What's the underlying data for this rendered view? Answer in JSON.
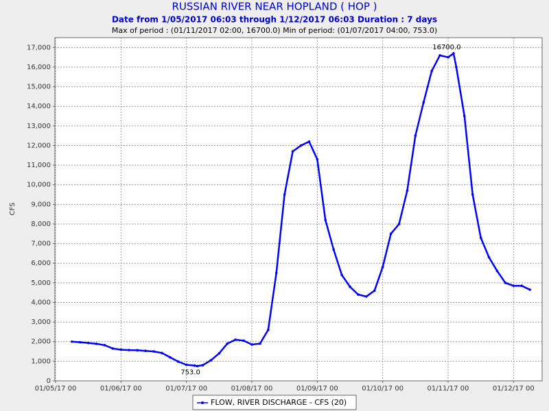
{
  "chart_data": {
    "type": "line",
    "title": "RUSSIAN RIVER NEAR HOPLAND ( HOP )",
    "subtitle": "Date from 1/05/2017 06:03 through 1/12/2017 06:03 Duration : 7 days",
    "summary": "Max of period : (01/11/2017 02:00, 16700.0)  Min of period: (01/07/2017 04:00,  753.0)",
    "y_label": "CFS",
    "grid": true,
    "xlim": [
      "2017-01-04T23:45",
      "2017-01-12T10:30"
    ],
    "ylim": [
      0,
      17500
    ],
    "xticks": [
      {
        "value": "2017-01-05T00:00",
        "label": "01/05/17 00"
      },
      {
        "value": "2017-01-06T00:00",
        "label": "01/06/17 00"
      },
      {
        "value": "2017-01-07T00:00",
        "label": "01/07/17 00"
      },
      {
        "value": "2017-01-08T00:00",
        "label": "01/08/17 00"
      },
      {
        "value": "2017-01-09T00:00",
        "label": "01/09/17 00"
      },
      {
        "value": "2017-01-10T00:00",
        "label": "01/10/17 00"
      },
      {
        "value": "2017-01-11T00:00",
        "label": "01/11/17 00"
      },
      {
        "value": "2017-01-12T00:00",
        "label": "01/12/17 00"
      }
    ],
    "yticks": [
      0,
      {
        "value": 1000,
        "label": "1,000"
      },
      {
        "value": 2000,
        "label": "2,000"
      },
      {
        "value": 3000,
        "label": "3,000"
      },
      {
        "value": 4000,
        "label": "4,000"
      },
      {
        "value": 5000,
        "label": "5,000"
      },
      {
        "value": 6000,
        "label": "6,000"
      },
      {
        "value": 7000,
        "label": "7,000"
      },
      {
        "value": 8000,
        "label": "8,000"
      },
      {
        "value": 9000,
        "label": "9,000"
      },
      {
        "value": 10000,
        "label": "10,000"
      },
      {
        "value": 11000,
        "label": "11,000"
      },
      {
        "value": 12000,
        "label": "12,000"
      },
      {
        "value": 13000,
        "label": "13,000"
      },
      {
        "value": 14000,
        "label": "14,000"
      },
      {
        "value": 15000,
        "label": "15,000"
      },
      {
        "value": 16000,
        "label": "16,000"
      },
      {
        "value": 17000,
        "label": "17,000"
      }
    ],
    "x": [
      "2017-01-05T06:00",
      "2017-01-05T09:00",
      "2017-01-05T12:00",
      "2017-01-05T15:00",
      "2017-01-05T18:00",
      "2017-01-05T21:00",
      "2017-01-06T00:00",
      "2017-01-06T03:00",
      "2017-01-06T06:00",
      "2017-01-06T09:00",
      "2017-01-06T12:00",
      "2017-01-06T15:00",
      "2017-01-06T18:00",
      "2017-01-06T21:00",
      "2017-01-07T00:00",
      "2017-01-07T03:00",
      "2017-01-07T04:00",
      "2017-01-07T06:00",
      "2017-01-07T09:00",
      "2017-01-07T12:00",
      "2017-01-07T15:00",
      "2017-01-07T18:00",
      "2017-01-07T21:00",
      "2017-01-08T00:00",
      "2017-01-08T03:00",
      "2017-01-08T06:00",
      "2017-01-08T09:00",
      "2017-01-08T12:00",
      "2017-01-08T15:00",
      "2017-01-08T18:00",
      "2017-01-08T21:00",
      "2017-01-09T00:00",
      "2017-01-09T03:00",
      "2017-01-09T06:00",
      "2017-01-09T09:00",
      "2017-01-09T12:00",
      "2017-01-09T15:00",
      "2017-01-09T18:00",
      "2017-01-09T21:00",
      "2017-01-10T00:00",
      "2017-01-10T03:00",
      "2017-01-10T06:00",
      "2017-01-10T09:00",
      "2017-01-10T12:00",
      "2017-01-10T15:00",
      "2017-01-10T18:00",
      "2017-01-10T21:00",
      "2017-01-11T00:00",
      "2017-01-11T02:00",
      "2017-01-11T03:00",
      "2017-01-11T06:00",
      "2017-01-11T09:00",
      "2017-01-11T12:00",
      "2017-01-11T15:00",
      "2017-01-11T18:00",
      "2017-01-11T21:00",
      "2017-01-12T00:00",
      "2017-01-12T03:00",
      "2017-01-12T06:00"
    ],
    "series": [
      {
        "name": "FLOW, RIVER DISCHARGE - CFS (20)",
        "color": "#0000ff",
        "values": [
          2000,
          1970,
          1930,
          1890,
          1820,
          1650,
          1590,
          1570,
          1560,
          1530,
          1500,
          1420,
          1200,
          980,
          820,
          780,
          753,
          800,
          1050,
          1400,
          1900,
          2100,
          2050,
          1850,
          1900,
          2600,
          5500,
          9500,
          11700,
          12000,
          12200,
          11300,
          8200,
          6700,
          5400,
          4800,
          4400,
          4300,
          4600,
          5800,
          7500,
          8000,
          9700,
          12500,
          14200,
          15800,
          16600,
          16500,
          16700,
          16000,
          13500,
          9500,
          7300,
          6300,
          5600,
          5000,
          4850,
          4850,
          4650
        ]
      }
    ],
    "annotations": [
      {
        "text": "16700.0",
        "x": "2017-01-11T02:00",
        "y": 16700
      },
      {
        "text": "753.0",
        "x": "2017-01-07T04:00",
        "y": 753
      }
    ]
  }
}
